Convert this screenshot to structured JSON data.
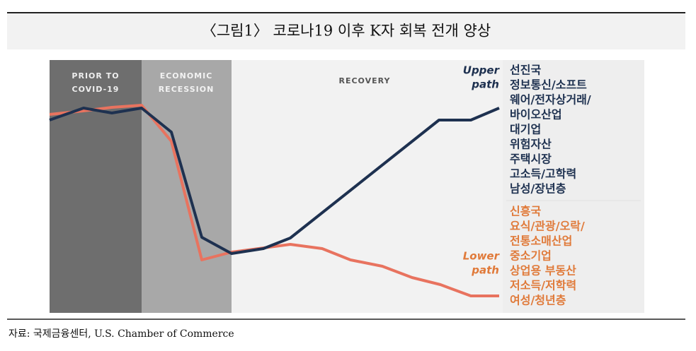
{
  "header": {
    "title": "〈그림1〉 코로나19 이후 K자 회복 전개 양상"
  },
  "phases": [
    {
      "lines": [
        "PRIOR TO",
        "COVID-19"
      ]
    },
    {
      "lines": [
        "ECONOMIC",
        "RECESSION"
      ]
    },
    {
      "lines": [
        "RECOVERY"
      ]
    }
  ],
  "upper": {
    "label": [
      "Upper",
      "path"
    ],
    "items": [
      "선진국",
      "정보통신/소프트",
      "웨어/전자상거래/",
      "바이오산업",
      "대기업",
      "위험자산",
      "주택시장",
      "고소득/고학력",
      "남성/장년층"
    ]
  },
  "lower": {
    "label": [
      "Lower",
      "path"
    ],
    "items": [
      "신흥국",
      "요식/관광/오락/",
      "전통소매산업",
      "중소기업",
      "상업용 부동산",
      "저소득/저학력",
      "여성/청년층"
    ]
  },
  "footer": {
    "source": "자료: 국제금융센터, U.S. Chamber of Commerce"
  }
}
